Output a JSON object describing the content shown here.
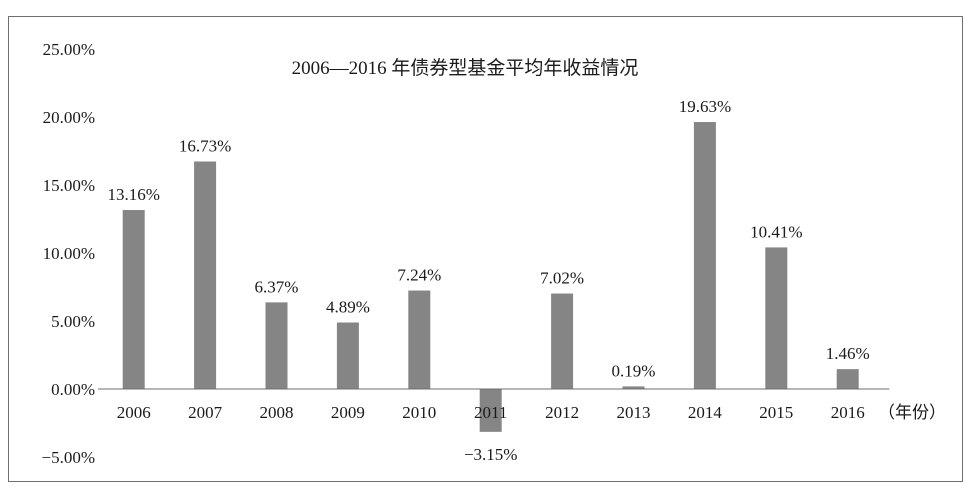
{
  "chart_data": {
    "type": "bar",
    "title": "2006—2016 年债券型基金平均年收益情况",
    "xlabel": "（年份）",
    "ylabel": "",
    "categories": [
      "2006",
      "2007",
      "2008",
      "2009",
      "2010",
      "2011",
      "2012",
      "2013",
      "2014",
      "2015",
      "2016"
    ],
    "values": [
      13.16,
      16.73,
      6.37,
      4.89,
      7.24,
      -3.15,
      7.02,
      0.19,
      19.63,
      10.41,
      1.46
    ],
    "data_labels": [
      "13.16%",
      "16.73%",
      "6.37%",
      "4.89%",
      "7.24%",
      "−3.15%",
      "7.02%",
      "0.19%",
      "19.63%",
      "10.41%",
      "1.46%"
    ],
    "yticks": [
      "−5.00%",
      "0.00%",
      "5.00%",
      "10.00%",
      "15.00%",
      "20.00%",
      "25.00%"
    ],
    "ytick_values": [
      -5,
      0,
      5,
      10,
      15,
      20,
      25
    ],
    "ylim": [
      -5,
      25
    ],
    "grid": false,
    "legend": "none",
    "bar_color": "#858585",
    "axis_color": "#6f6f6f"
  }
}
